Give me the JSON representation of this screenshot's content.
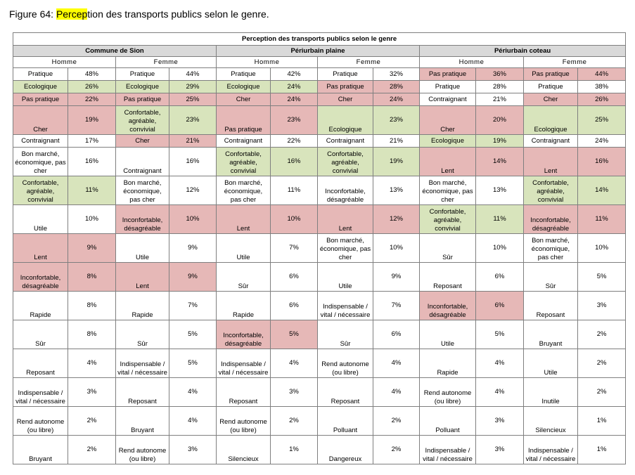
{
  "figure": {
    "prefix": "Figure 64: ",
    "highlight": "Percep",
    "rest": "tion des transports publics selon le genre."
  },
  "table": {
    "main_header": "Perception des transports publics selon le genre",
    "zones": [
      "Commune de Sion",
      "Périurbain plaine",
      "Périurbain coteau"
    ],
    "sexes": [
      "Homme",
      "Femme"
    ],
    "colors": {
      "positive": "#d8e4bc",
      "negative": "#e6b8b7",
      "header": "#d9d9d9"
    },
    "rows": [
      [
        [
          "Pratique",
          "48%",
          "w"
        ],
        [
          "Pratique",
          "44%",
          "w"
        ],
        [
          "Pratique",
          "42%",
          "w"
        ],
        [
          "Pratique",
          "32%",
          "w"
        ],
        [
          "Pas pratique",
          "36%",
          "r"
        ],
        [
          "Pas pratique",
          "44%",
          "r"
        ]
      ],
      [
        [
          "Ecologique",
          "26%",
          "g"
        ],
        [
          "Ecologique",
          "29%",
          "g"
        ],
        [
          "Ecologique",
          "24%",
          "g"
        ],
        [
          "Pas pratique",
          "28%",
          "r"
        ],
        [
          "Pratique",
          "28%",
          "w"
        ],
        [
          "Pratique",
          "38%",
          "w"
        ]
      ],
      [
        [
          "Pas pratique",
          "22%",
          "r"
        ],
        [
          "Pas pratique",
          "25%",
          "r"
        ],
        [
          "Cher",
          "24%",
          "r"
        ],
        [
          "Cher",
          "24%",
          "r"
        ],
        [
          "Contraignant",
          "21%",
          "w"
        ],
        [
          "Cher",
          "26%",
          "r"
        ]
      ],
      [
        [
          "Cher",
          "19%",
          "r"
        ],
        [
          "Confortable, agréable, convivial",
          "23%",
          "g"
        ],
        [
          "Pas pratique",
          "23%",
          "r"
        ],
        [
          "Ecologique",
          "23%",
          "g"
        ],
        [
          "Cher",
          "20%",
          "r"
        ],
        [
          "Ecologique",
          "25%",
          "g"
        ]
      ],
      [
        [
          "Contraignant",
          "17%",
          "w"
        ],
        [
          "Cher",
          "21%",
          "r"
        ],
        [
          "Contraignant",
          "22%",
          "w"
        ],
        [
          "Contraignant",
          "21%",
          "w"
        ],
        [
          "Ecologique",
          "19%",
          "g"
        ],
        [
          "Contraignant",
          "24%",
          "w"
        ]
      ],
      [
        [
          "Bon marché, économique, pas cher",
          "16%",
          "w"
        ],
        [
          "Contraignant",
          "16%",
          "w"
        ],
        [
          "Confortable, agréable, convivial",
          "16%",
          "g"
        ],
        [
          "Confortable, agréable, convivial",
          "19%",
          "g"
        ],
        [
          "Lent",
          "14%",
          "r"
        ],
        [
          "Lent",
          "16%",
          "r"
        ]
      ],
      [
        [
          "Confortable, agréable, convivial",
          "11%",
          "g"
        ],
        [
          "Bon marché, économique, pas cher",
          "12%",
          "w"
        ],
        [
          "Bon marché, économique, pas cher",
          "11%",
          "w"
        ],
        [
          "Inconfortable, désagréable",
          "13%",
          "w"
        ],
        [
          "Bon marché, économique, pas cher",
          "13%",
          "w"
        ],
        [
          "Confortable, agréable, convivial",
          "14%",
          "g"
        ]
      ],
      [
        [
          "Utile",
          "10%",
          "w"
        ],
        [
          "Inconfortable, désagréable",
          "10%",
          "r"
        ],
        [
          "Lent",
          "10%",
          "r"
        ],
        [
          "Lent",
          "12%",
          "r"
        ],
        [
          "Confortable, agréable, convivial",
          "11%",
          "g"
        ],
        [
          "Inconfortable, désagréable",
          "11%",
          "r"
        ]
      ],
      [
        [
          "Lent",
          "9%",
          "r"
        ],
        [
          "Utile",
          "9%",
          "w"
        ],
        [
          "Utile",
          "7%",
          "w"
        ],
        [
          "Bon marché, économique, pas cher",
          "10%",
          "w"
        ],
        [
          "Sûr",
          "10%",
          "w"
        ],
        [
          "Bon marché, économique, pas cher",
          "10%",
          "w"
        ]
      ],
      [
        [
          "Inconfortable, désagréable",
          "8%",
          "r"
        ],
        [
          "Lent",
          "9%",
          "r"
        ],
        [
          "Sûr",
          "6%",
          "w"
        ],
        [
          "Utile",
          "9%",
          "w"
        ],
        [
          "Reposant",
          "6%",
          "w"
        ],
        [
          "Sûr",
          "5%",
          "w"
        ]
      ],
      [
        [
          "Rapide",
          "8%",
          "w"
        ],
        [
          "Rapide",
          "7%",
          "w"
        ],
        [
          "Rapide",
          "6%",
          "w"
        ],
        [
          "Indispensable / vital / nécessaire",
          "7%",
          "w"
        ],
        [
          "Inconfortable, désagréable",
          "6%",
          "r"
        ],
        [
          "Reposant",
          "3%",
          "w"
        ]
      ],
      [
        [
          "Sûr",
          "8%",
          "w"
        ],
        [
          "Sûr",
          "5%",
          "w"
        ],
        [
          "Inconfortable, désagréable",
          "5%",
          "r"
        ],
        [
          "Sûr",
          "6%",
          "w"
        ],
        [
          "Utile",
          "5%",
          "w"
        ],
        [
          "Bruyant",
          "2%",
          "w"
        ]
      ],
      [
        [
          "Reposant",
          "4%",
          "w"
        ],
        [
          "Indispensable / vital / nécessaire",
          "5%",
          "w"
        ],
        [
          "Indispensable / vital / nécessaire",
          "4%",
          "w"
        ],
        [
          "Rend autonome (ou libre)",
          "4%",
          "w"
        ],
        [
          "Rapide",
          "4%",
          "w"
        ],
        [
          "Utile",
          "2%",
          "w"
        ]
      ],
      [
        [
          "Indispensable / vital / nécessaire",
          "3%",
          "w"
        ],
        [
          "Reposant",
          "4%",
          "w"
        ],
        [
          "Reposant",
          "3%",
          "w"
        ],
        [
          "Reposant",
          "4%",
          "w"
        ],
        [
          "Rend autonome (ou libre)",
          "4%",
          "w"
        ],
        [
          "Inutile",
          "2%",
          "w"
        ]
      ],
      [
        [
          "Rend autonome (ou libre)",
          "2%",
          "w"
        ],
        [
          "Bruyant",
          "4%",
          "w"
        ],
        [
          "Rend autonome (ou libre)",
          "2%",
          "w"
        ],
        [
          "Polluant",
          "2%",
          "w"
        ],
        [
          "Polluant",
          "3%",
          "w"
        ],
        [
          "Silencieux",
          "1%",
          "w"
        ]
      ],
      [
        [
          "Bruyant",
          "2%",
          "w"
        ],
        [
          "Rend autonome (ou libre)",
          "3%",
          "w"
        ],
        [
          "Silencieux",
          "1%",
          "w"
        ],
        [
          "Dangereux",
          "2%",
          "w"
        ],
        [
          "Indispensable / vital / nécessaire",
          "3%",
          "w"
        ],
        [
          "Indispensable / vital / nécessaire",
          "1%",
          "w"
        ]
      ]
    ]
  }
}
